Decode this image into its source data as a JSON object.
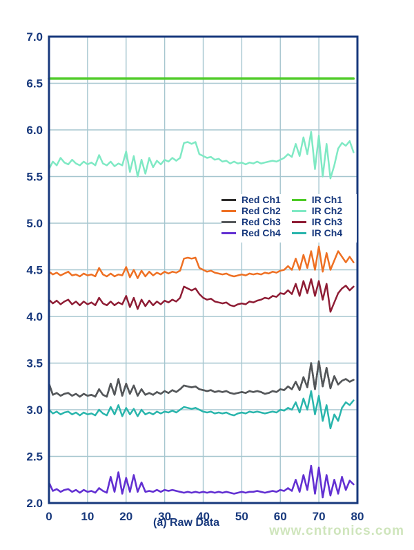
{
  "watermark": {
    "text": "www.cntronics.com",
    "color": "#cfe5bc"
  },
  "chart_data": {
    "type": "line",
    "caption": "(a) Raw Data",
    "xlabel": "",
    "ylabel": "",
    "xlim": [
      0,
      80
    ],
    "ylim": [
      2.0,
      7.0
    ],
    "grid": true,
    "legend_position": "inside-middle-right",
    "axis_color": "#17387c",
    "grid_color": "#a5c6cf",
    "tick_color": "#17387c",
    "x_ticks": [
      "0",
      "10",
      "20",
      "30",
      "40",
      "50",
      "60",
      "70",
      "80"
    ],
    "y_ticks": [
      "2.0",
      "2.5",
      "3.0",
      "3.5",
      "4.0",
      "4.5",
      "5.0",
      "5.5",
      "6.0",
      "6.5",
      "7.0"
    ],
    "legend": {
      "columns": [
        [
          "Red Ch1",
          "Red Ch2",
          "Red Ch3",
          "Red Ch4"
        ],
        [
          "IR Ch1",
          "IR Ch2",
          "IR Ch3",
          "IR Ch4"
        ]
      ]
    },
    "series": [
      {
        "name": "IR Ch1",
        "color": "#4ecb27",
        "width": 3.5,
        "x_start": 0,
        "x_step": 79,
        "values": [
          6.55,
          6.55
        ]
      },
      {
        "name": "IR Ch2",
        "color": "#7fe9c4",
        "width": 2.5,
        "x_start": 0,
        "x_step": 1,
        "values": [
          5.58,
          5.66,
          5.62,
          5.7,
          5.65,
          5.63,
          5.68,
          5.64,
          5.62,
          5.66,
          5.63,
          5.65,
          5.62,
          5.73,
          5.64,
          5.62,
          5.66,
          5.61,
          5.64,
          5.62,
          5.77,
          5.55,
          5.72,
          5.5,
          5.68,
          5.53,
          5.7,
          5.6,
          5.67,
          5.63,
          5.68,
          5.66,
          5.7,
          5.67,
          5.7,
          5.86,
          5.87,
          5.85,
          5.87,
          5.74,
          5.72,
          5.7,
          5.71,
          5.68,
          5.69,
          5.66,
          5.67,
          5.64,
          5.66,
          5.64,
          5.65,
          5.63,
          5.65,
          5.64,
          5.66,
          5.64,
          5.65,
          5.66,
          5.67,
          5.66,
          5.68,
          5.7,
          5.74,
          5.71,
          5.85,
          5.72,
          5.92,
          5.74,
          5.98,
          5.58,
          5.94,
          5.5,
          5.85,
          5.48,
          5.62,
          5.8,
          5.86,
          5.83,
          5.88,
          5.76
        ]
      },
      {
        "name": "Red Ch2",
        "color": "#ee7023",
        "width": 2.5,
        "x_start": 0,
        "x_step": 1,
        "values": [
          4.48,
          4.45,
          4.47,
          4.44,
          4.46,
          4.48,
          4.44,
          4.45,
          4.43,
          4.46,
          4.44,
          4.45,
          4.43,
          4.52,
          4.45,
          4.43,
          4.46,
          4.43,
          4.45,
          4.44,
          4.53,
          4.42,
          4.5,
          4.41,
          4.49,
          4.43,
          4.48,
          4.44,
          4.47,
          4.45,
          4.48,
          4.46,
          4.48,
          4.47,
          4.49,
          4.62,
          4.63,
          4.62,
          4.63,
          4.52,
          4.5,
          4.48,
          4.49,
          4.47,
          4.46,
          4.45,
          4.46,
          4.44,
          4.43,
          4.44,
          4.45,
          4.44,
          4.46,
          4.45,
          4.46,
          4.45,
          4.47,
          4.46,
          4.48,
          4.47,
          4.49,
          4.5,
          4.54,
          4.5,
          4.62,
          4.5,
          4.66,
          4.52,
          4.7,
          4.5,
          4.75,
          4.48,
          4.68,
          4.5,
          4.6,
          4.7,
          4.64,
          4.58,
          4.64,
          4.58
        ]
      },
      {
        "name": "IR Ch3",
        "color": "#8e1c34",
        "width": 2.5,
        "x_start": 0,
        "x_step": 1,
        "values": [
          4.18,
          4.14,
          4.17,
          4.13,
          4.16,
          4.18,
          4.13,
          4.16,
          4.12,
          4.16,
          4.13,
          4.15,
          4.12,
          4.2,
          4.14,
          4.12,
          4.16,
          4.12,
          4.15,
          4.13,
          4.22,
          4.1,
          4.2,
          4.08,
          4.18,
          4.11,
          4.17,
          4.12,
          4.16,
          4.13,
          4.17,
          4.15,
          4.18,
          4.16,
          4.2,
          4.32,
          4.3,
          4.28,
          4.3,
          4.24,
          4.2,
          4.18,
          4.19,
          4.16,
          4.15,
          4.14,
          4.15,
          4.12,
          4.11,
          4.13,
          4.14,
          4.13,
          4.16,
          4.15,
          4.17,
          4.18,
          4.2,
          4.19,
          4.22,
          4.21,
          4.25,
          4.24,
          4.28,
          4.24,
          4.35,
          4.22,
          4.38,
          4.25,
          4.4,
          4.22,
          4.38,
          4.18,
          4.35,
          4.05,
          4.15,
          4.25,
          4.3,
          4.33,
          4.28,
          4.32
        ]
      },
      {
        "name": "Red Ch1",
        "color": "#2e2d2c",
        "width": 2.5,
        "x_start": 0,
        "x_step": 1,
        "values": [
          3.28,
          3.16,
          3.18,
          3.15,
          3.17,
          3.18,
          3.15,
          3.17,
          3.14,
          3.17,
          3.15,
          3.16,
          3.14,
          3.22,
          3.16,
          3.14,
          3.28,
          3.16,
          3.33,
          3.15,
          3.28,
          3.17,
          3.26,
          3.15,
          3.22,
          3.16,
          3.18,
          3.16,
          3.19,
          3.17,
          3.2,
          3.18,
          3.21,
          3.19,
          3.22,
          3.26,
          3.25,
          3.24,
          3.25,
          3.22,
          3.21,
          3.2,
          3.21,
          3.19,
          3.2,
          3.19,
          3.2,
          3.18,
          3.17,
          3.18,
          3.19,
          3.18,
          3.2,
          3.19,
          3.2,
          3.19,
          3.17,
          3.18,
          3.2,
          3.19,
          3.22,
          3.21,
          3.25,
          3.22,
          3.3,
          3.21,
          3.35,
          3.24,
          3.5,
          3.22,
          3.52,
          3.25,
          3.45,
          3.23,
          3.36,
          3.27,
          3.31,
          3.33,
          3.3,
          3.32
        ]
      },
      {
        "name": "Red Ch3",
        "color": "#54575a",
        "width": 2.5,
        "x_start": 0,
        "x_step": 1,
        "values": [
          3.28,
          3.16,
          3.18,
          3.15,
          3.17,
          3.18,
          3.15,
          3.17,
          3.14,
          3.17,
          3.15,
          3.16,
          3.14,
          3.22,
          3.16,
          3.14,
          3.28,
          3.16,
          3.33,
          3.15,
          3.28,
          3.17,
          3.26,
          3.15,
          3.22,
          3.16,
          3.18,
          3.16,
          3.19,
          3.17,
          3.2,
          3.18,
          3.21,
          3.19,
          3.22,
          3.26,
          3.25,
          3.24,
          3.25,
          3.22,
          3.21,
          3.2,
          3.21,
          3.19,
          3.2,
          3.19,
          3.2,
          3.18,
          3.17,
          3.18,
          3.19,
          3.18,
          3.2,
          3.19,
          3.2,
          3.19,
          3.17,
          3.18,
          3.2,
          3.19,
          3.22,
          3.21,
          3.25,
          3.22,
          3.3,
          3.21,
          3.35,
          3.24,
          3.5,
          3.22,
          3.52,
          3.25,
          3.45,
          3.23,
          3.36,
          3.27,
          3.31,
          3.33,
          3.3,
          3.32
        ]
      },
      {
        "name": "IR Ch4",
        "color": "#29b5ac",
        "width": 2.5,
        "x_start": 0,
        "x_step": 1,
        "values": [
          3.0,
          2.96,
          2.98,
          2.95,
          2.97,
          2.98,
          2.95,
          2.97,
          2.94,
          2.97,
          2.95,
          2.96,
          2.94,
          3.0,
          2.96,
          2.94,
          3.03,
          2.95,
          3.05,
          2.93,
          3.02,
          2.95,
          3.01,
          2.93,
          3.0,
          2.95,
          2.97,
          2.95,
          2.98,
          2.96,
          2.98,
          2.97,
          2.99,
          2.97,
          3.0,
          3.03,
          3.02,
          3.01,
          3.02,
          3.0,
          2.98,
          2.97,
          2.98,
          2.96,
          2.97,
          2.96,
          2.97,
          2.95,
          2.94,
          2.96,
          2.97,
          2.96,
          2.98,
          2.97,
          2.98,
          2.97,
          2.96,
          2.97,
          2.98,
          2.97,
          3.0,
          2.99,
          3.02,
          3.0,
          3.08,
          2.97,
          3.12,
          3.0,
          3.2,
          2.95,
          3.15,
          2.88,
          3.05,
          2.8,
          2.95,
          2.88,
          3.02,
          3.08,
          3.05,
          3.1
        ]
      },
      {
        "name": "Red Ch4",
        "color": "#6230d2",
        "width": 2.6,
        "x_start": 0,
        "x_step": 1,
        "values": [
          2.22,
          2.13,
          2.15,
          2.12,
          2.14,
          2.15,
          2.12,
          2.14,
          2.11,
          2.14,
          2.12,
          2.13,
          2.11,
          2.16,
          2.13,
          2.11,
          2.28,
          2.12,
          2.33,
          2.1,
          2.27,
          2.12,
          2.3,
          2.12,
          2.22,
          2.12,
          2.13,
          2.12,
          2.14,
          2.12,
          2.14,
          2.13,
          2.14,
          2.13,
          2.12,
          2.11,
          2.12,
          2.11,
          2.12,
          2.11,
          2.12,
          2.11,
          2.12,
          2.11,
          2.12,
          2.11,
          2.12,
          2.11,
          2.1,
          2.11,
          2.12,
          2.11,
          2.12,
          2.12,
          2.13,
          2.12,
          2.11,
          2.12,
          2.13,
          2.12,
          2.14,
          2.13,
          2.16,
          2.13,
          2.25,
          2.12,
          2.3,
          2.14,
          2.4,
          2.1,
          2.38,
          2.06,
          2.3,
          2.08,
          2.25,
          2.1,
          2.28,
          2.14,
          2.24,
          2.2
        ]
      }
    ]
  }
}
